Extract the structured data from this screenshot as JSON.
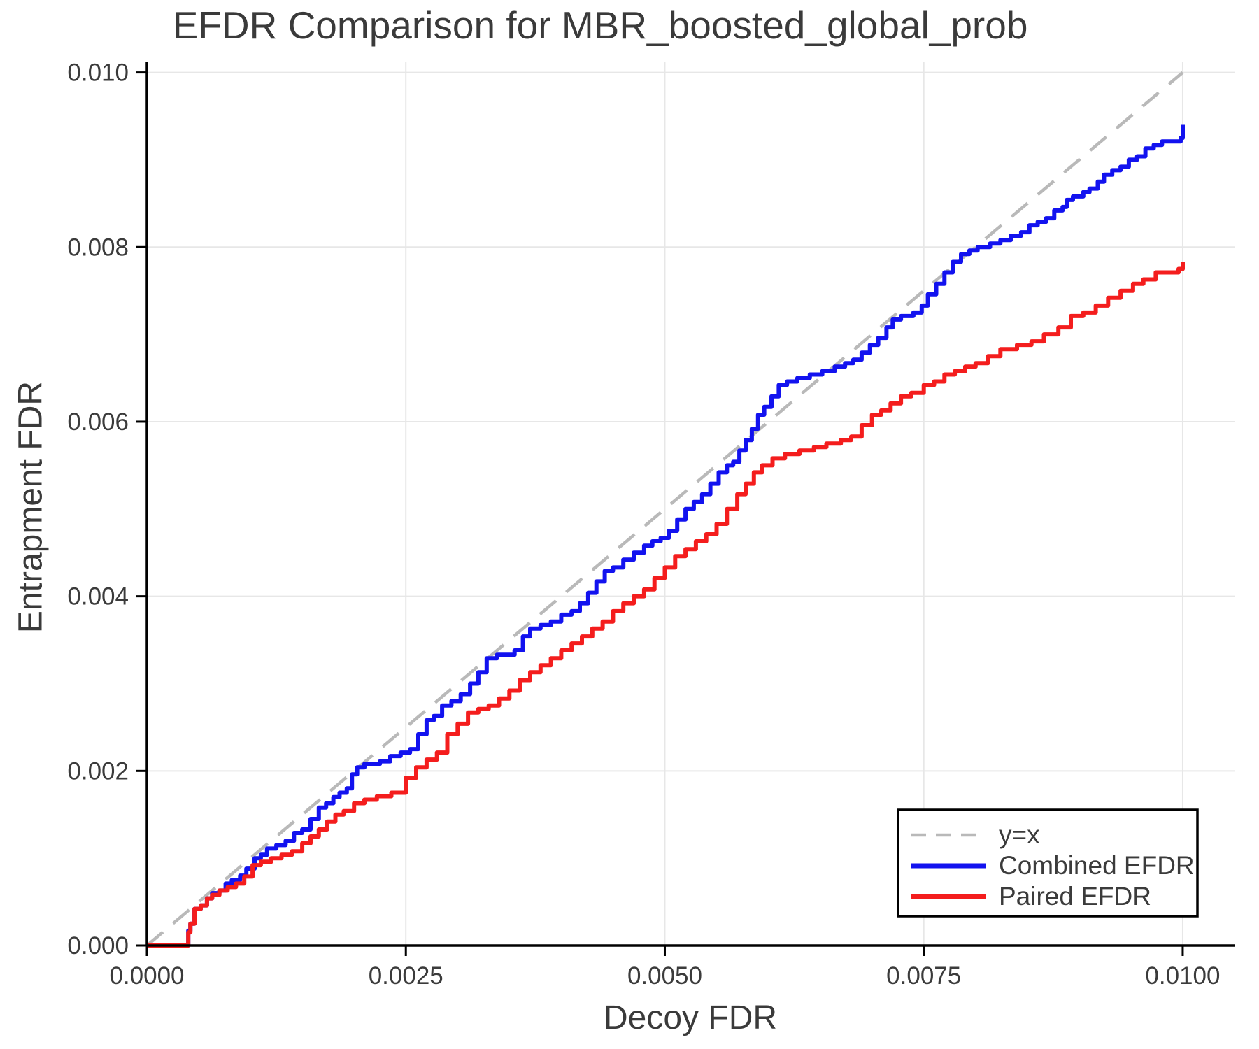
{
  "chart_data": {
    "type": "line",
    "title": "EFDR Comparison for MBR_boosted_global_prob",
    "xlabel": "Decoy FDR",
    "ylabel": "Entrapment FDR",
    "xlim": [
      0,
      0.0105
    ],
    "ylim": [
      0,
      0.010125
    ],
    "grid": true,
    "x_ticks": [
      {
        "v": 0.0,
        "label": "0.0000"
      },
      {
        "v": 0.0025,
        "label": "0.0025"
      },
      {
        "v": 0.005,
        "label": "0.0050"
      },
      {
        "v": 0.0075,
        "label": "0.0075"
      },
      {
        "v": 0.01,
        "label": "0.0100"
      }
    ],
    "y_ticks": [
      {
        "v": 0.0,
        "label": "0.000"
      },
      {
        "v": 0.002,
        "label": "0.002"
      },
      {
        "v": 0.004,
        "label": "0.004"
      },
      {
        "v": 0.006,
        "label": "0.006"
      },
      {
        "v": 0.008,
        "label": "0.008"
      },
      {
        "v": 0.01,
        "label": "0.010"
      }
    ],
    "colors": {
      "combined": "#1212ef",
      "paired": "#f41d1d",
      "identity": "#b9b9b9",
      "grid": "#e7e7e7",
      "spine": "#000000",
      "text": "#3b3b3b"
    },
    "legend": {
      "position": "lower right",
      "entries": [
        {
          "label": "y=x",
          "color": "#b9b9b9",
          "dashed": true
        },
        {
          "label": "Combined EFDR",
          "color": "#1212ef",
          "dashed": false
        },
        {
          "label": "Paired EFDR",
          "color": "#f41d1d",
          "dashed": false
        }
      ]
    },
    "series": [
      {
        "name": "y=x",
        "role": "identity-reference",
        "style": "dashed",
        "color": "#b9b9b9",
        "scale": 1,
        "step": false,
        "points": [
          [
            0,
            0
          ],
          [
            0.01,
            0.01
          ]
        ]
      },
      {
        "name": "Combined EFDR",
        "role": "data",
        "style": "solid",
        "color": "#1212ef",
        "scale": 0.0001,
        "step": true,
        "points": [
          [
            0,
            0
          ],
          [
            3.8,
            0
          ],
          [
            4,
            1.7
          ],
          [
            4.2,
            2.5
          ],
          [
            4.6,
            4.2
          ],
          [
            5.2,
            4.6
          ],
          [
            5.8,
            5.4
          ],
          [
            6.3,
            6
          ],
          [
            7,
            6.3
          ],
          [
            7.6,
            7.1
          ],
          [
            8.2,
            7.5
          ],
          [
            9,
            8
          ],
          [
            9.6,
            8.8
          ],
          [
            10.4,
            10
          ],
          [
            11,
            10.4
          ],
          [
            11.6,
            11.1
          ],
          [
            12.5,
            11.5
          ],
          [
            13.4,
            12
          ],
          [
            14.2,
            12.9
          ],
          [
            15,
            13.3
          ],
          [
            15.8,
            14.5
          ],
          [
            16.6,
            15.8
          ],
          [
            17.3,
            16.3
          ],
          [
            18,
            17
          ],
          [
            18.6,
            17.5
          ],
          [
            19.3,
            18
          ],
          [
            19.8,
            19.6
          ],
          [
            20.3,
            20.4
          ],
          [
            21,
            20.8
          ],
          [
            22.5,
            21.1
          ],
          [
            23.5,
            21.7
          ],
          [
            24.5,
            22.1
          ],
          [
            25.4,
            22.5
          ],
          [
            26.2,
            24.2
          ],
          [
            27,
            25.8
          ],
          [
            27.7,
            26.3
          ],
          [
            28.5,
            27.5
          ],
          [
            29.4,
            28
          ],
          [
            30.3,
            28.8
          ],
          [
            31.2,
            30
          ],
          [
            32,
            31.3
          ],
          [
            32.8,
            32.9
          ],
          [
            33.8,
            33.3
          ],
          [
            35.5,
            33.8
          ],
          [
            36.3,
            35.4
          ],
          [
            37,
            36.3
          ],
          [
            38,
            36.7
          ],
          [
            39,
            37.1
          ],
          [
            40,
            37.9
          ],
          [
            41,
            38.3
          ],
          [
            41.8,
            39.2
          ],
          [
            42.6,
            40.4
          ],
          [
            43.4,
            41.7
          ],
          [
            44.2,
            42.9
          ],
          [
            45,
            43.3
          ],
          [
            46,
            44.2
          ],
          [
            47,
            45
          ],
          [
            48,
            45.8
          ],
          [
            48.8,
            46.3
          ],
          [
            49.6,
            46.7
          ],
          [
            50.4,
            47.5
          ],
          [
            51.2,
            48.8
          ],
          [
            52,
            50
          ],
          [
            52.8,
            50.8
          ],
          [
            53.6,
            51.7
          ],
          [
            54.4,
            52.9
          ],
          [
            55.2,
            54.2
          ],
          [
            56,
            55
          ],
          [
            56.6,
            55.4
          ],
          [
            57.2,
            56.7
          ],
          [
            57.8,
            57.9
          ],
          [
            58.4,
            59.2
          ],
          [
            59,
            60.8
          ],
          [
            59.6,
            61.7
          ],
          [
            60.3,
            62.9
          ],
          [
            61,
            64.2
          ],
          [
            61.8,
            64.6
          ],
          [
            62.8,
            65
          ],
          [
            64,
            65.4
          ],
          [
            65.2,
            65.8
          ],
          [
            66.4,
            66.3
          ],
          [
            67.4,
            66.7
          ],
          [
            68.2,
            67.1
          ],
          [
            69,
            67.9
          ],
          [
            69.8,
            68.8
          ],
          [
            70.6,
            69.6
          ],
          [
            71.4,
            70.8
          ],
          [
            72,
            71.7
          ],
          [
            72.8,
            72.1
          ],
          [
            74,
            72.5
          ],
          [
            74.8,
            73.3
          ],
          [
            75.4,
            74.6
          ],
          [
            76.2,
            75.8
          ],
          [
            77,
            77.1
          ],
          [
            77.8,
            78.3
          ],
          [
            78.6,
            79.2
          ],
          [
            79.4,
            79.6
          ],
          [
            80.2,
            80
          ],
          [
            81.4,
            80.4
          ],
          [
            82.4,
            80.8
          ],
          [
            83.4,
            81.3
          ],
          [
            84.4,
            81.7
          ],
          [
            85.2,
            82.5
          ],
          [
            86,
            82.9
          ],
          [
            86.8,
            83.3
          ],
          [
            87.6,
            84.2
          ],
          [
            88.4,
            84.6
          ],
          [
            88.8,
            85.4
          ],
          [
            89.4,
            85.8
          ],
          [
            90.4,
            86.3
          ],
          [
            91,
            86.7
          ],
          [
            91.8,
            87.5
          ],
          [
            92.4,
            88.3
          ],
          [
            93.2,
            88.8
          ],
          [
            94,
            89.2
          ],
          [
            94.8,
            90
          ],
          [
            95.6,
            90.4
          ],
          [
            96.4,
            91.3
          ],
          [
            97.2,
            91.7
          ],
          [
            98,
            92.1
          ],
          [
            99.4,
            92.1
          ],
          [
            99.8,
            92.5
          ],
          [
            100,
            94
          ]
        ]
      },
      {
        "name": "Paired EFDR",
        "role": "data",
        "style": "solid",
        "color": "#f41d1d",
        "scale": 0.0001,
        "step": true,
        "points": [
          [
            0,
            0
          ],
          [
            3.8,
            0
          ],
          [
            4,
            1.5
          ],
          [
            4.2,
            2.5
          ],
          [
            4.6,
            4.2
          ],
          [
            5.2,
            4.6
          ],
          [
            5.8,
            5.4
          ],
          [
            6.3,
            5.8
          ],
          [
            7,
            6.3
          ],
          [
            7.8,
            6.7
          ],
          [
            8.6,
            7.1
          ],
          [
            9.4,
            7.9
          ],
          [
            10.2,
            9.2
          ],
          [
            11,
            9.6
          ],
          [
            12,
            10
          ],
          [
            13,
            10.4
          ],
          [
            14,
            10.8
          ],
          [
            15,
            11.7
          ],
          [
            15.8,
            12.5
          ],
          [
            16.6,
            13.3
          ],
          [
            17.4,
            14.2
          ],
          [
            18.2,
            15
          ],
          [
            19,
            15.4
          ],
          [
            20,
            16.3
          ],
          [
            21,
            16.7
          ],
          [
            22.2,
            17.1
          ],
          [
            23.6,
            17.5
          ],
          [
            25,
            19.2
          ],
          [
            26,
            20.4
          ],
          [
            27,
            21.3
          ],
          [
            28,
            22.1
          ],
          [
            29,
            24.2
          ],
          [
            30,
            25.4
          ],
          [
            31,
            26.7
          ],
          [
            32,
            27.1
          ],
          [
            33,
            27.5
          ],
          [
            34,
            28.3
          ],
          [
            35,
            29.2
          ],
          [
            36,
            30.4
          ],
          [
            37,
            31.3
          ],
          [
            38,
            32.1
          ],
          [
            39,
            32.9
          ],
          [
            40,
            33.8
          ],
          [
            41,
            34.6
          ],
          [
            42,
            35.4
          ],
          [
            43,
            36.3
          ],
          [
            44,
            37.1
          ],
          [
            45,
            38.3
          ],
          [
            46,
            39.2
          ],
          [
            47,
            40
          ],
          [
            48,
            40.8
          ],
          [
            49,
            42.1
          ],
          [
            50,
            43.3
          ],
          [
            51,
            44.6
          ],
          [
            52,
            45.4
          ],
          [
            53,
            46.3
          ],
          [
            54,
            47.1
          ],
          [
            55,
            48.3
          ],
          [
            56,
            50
          ],
          [
            57,
            51.7
          ],
          [
            57.8,
            52.9
          ],
          [
            58.6,
            54.2
          ],
          [
            59.4,
            55
          ],
          [
            60.4,
            55.8
          ],
          [
            61.6,
            56.3
          ],
          [
            63,
            56.7
          ],
          [
            64.4,
            57.1
          ],
          [
            65.6,
            57.5
          ],
          [
            67,
            57.9
          ],
          [
            68,
            58.3
          ],
          [
            69,
            59.6
          ],
          [
            70,
            60.8
          ],
          [
            70.9,
            61.3
          ],
          [
            71.8,
            62.1
          ],
          [
            72.8,
            62.9
          ],
          [
            73.8,
            63.3
          ],
          [
            75,
            64.2
          ],
          [
            76,
            64.6
          ],
          [
            77,
            65.4
          ],
          [
            78,
            65.8
          ],
          [
            79,
            66.3
          ],
          [
            80,
            66.7
          ],
          [
            81.2,
            67.5
          ],
          [
            82.4,
            68.3
          ],
          [
            84,
            68.8
          ],
          [
            85.4,
            69.2
          ],
          [
            86.6,
            70
          ],
          [
            88,
            70.8
          ],
          [
            89.2,
            72.1
          ],
          [
            90.4,
            72.5
          ],
          [
            91.6,
            73.3
          ],
          [
            92.8,
            74.2
          ],
          [
            94,
            75
          ],
          [
            95.2,
            75.8
          ],
          [
            96.2,
            76.3
          ],
          [
            97.4,
            77.1
          ],
          [
            99.2,
            77.1
          ],
          [
            99.6,
            77.5
          ],
          [
            100,
            78.3
          ]
        ]
      }
    ]
  }
}
